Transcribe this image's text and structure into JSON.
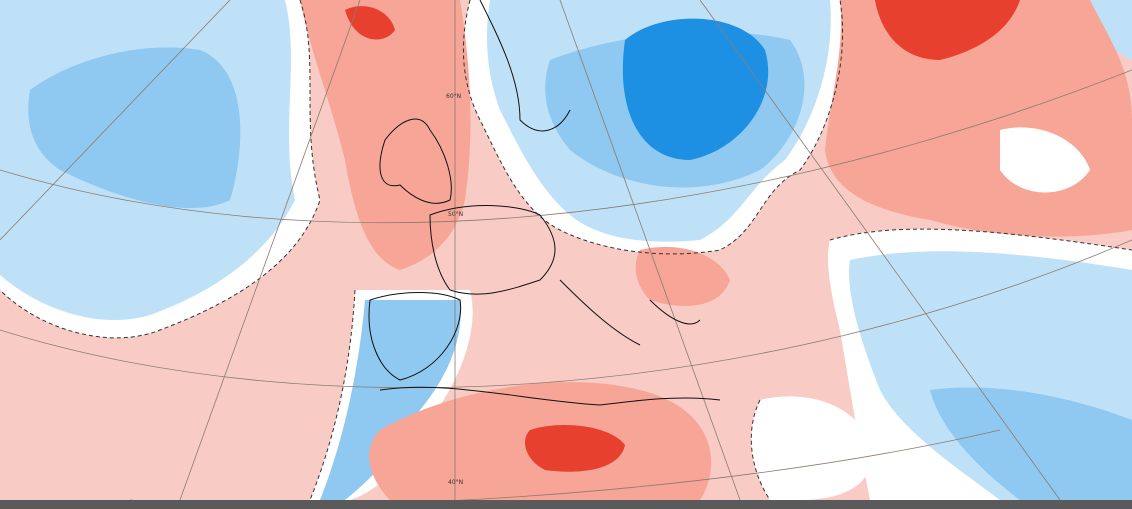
{
  "map": {
    "latitude_labels": [
      "60°N",
      "50°N",
      "40°N"
    ]
  }
}
